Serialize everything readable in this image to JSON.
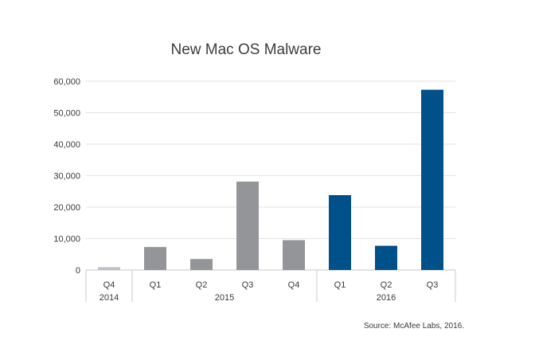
{
  "chart_data": {
    "type": "bar",
    "title": "New Mac OS Malware",
    "source": "Source: McAfee Labs, 2016.",
    "ylim": [
      0,
      60000
    ],
    "yticks": [
      "0",
      "10,000",
      "20,000",
      "30,000",
      "40,000",
      "50,000",
      "60,000"
    ],
    "ytick_values": [
      0,
      10000,
      20000,
      30000,
      40000,
      50000,
      60000
    ],
    "grid": true,
    "categories": [
      "Q4",
      "Q1",
      "Q2",
      "Q3",
      "Q4",
      "Q1",
      "Q2",
      "Q3"
    ],
    "values": [
      900,
      7300,
      3500,
      28100,
      9500,
      23800,
      7700,
      57300
    ],
    "bar_colors": [
      "#bcc0c6",
      "#939598",
      "#939598",
      "#939598",
      "#939598",
      "#00508a",
      "#00508a",
      "#00508a"
    ],
    "year_groups": [
      {
        "label": "2014",
        "start": 0,
        "end": 0
      },
      {
        "label": "2015",
        "start": 1,
        "end": 4
      },
      {
        "label": "2016",
        "start": 5,
        "end": 7
      }
    ]
  }
}
